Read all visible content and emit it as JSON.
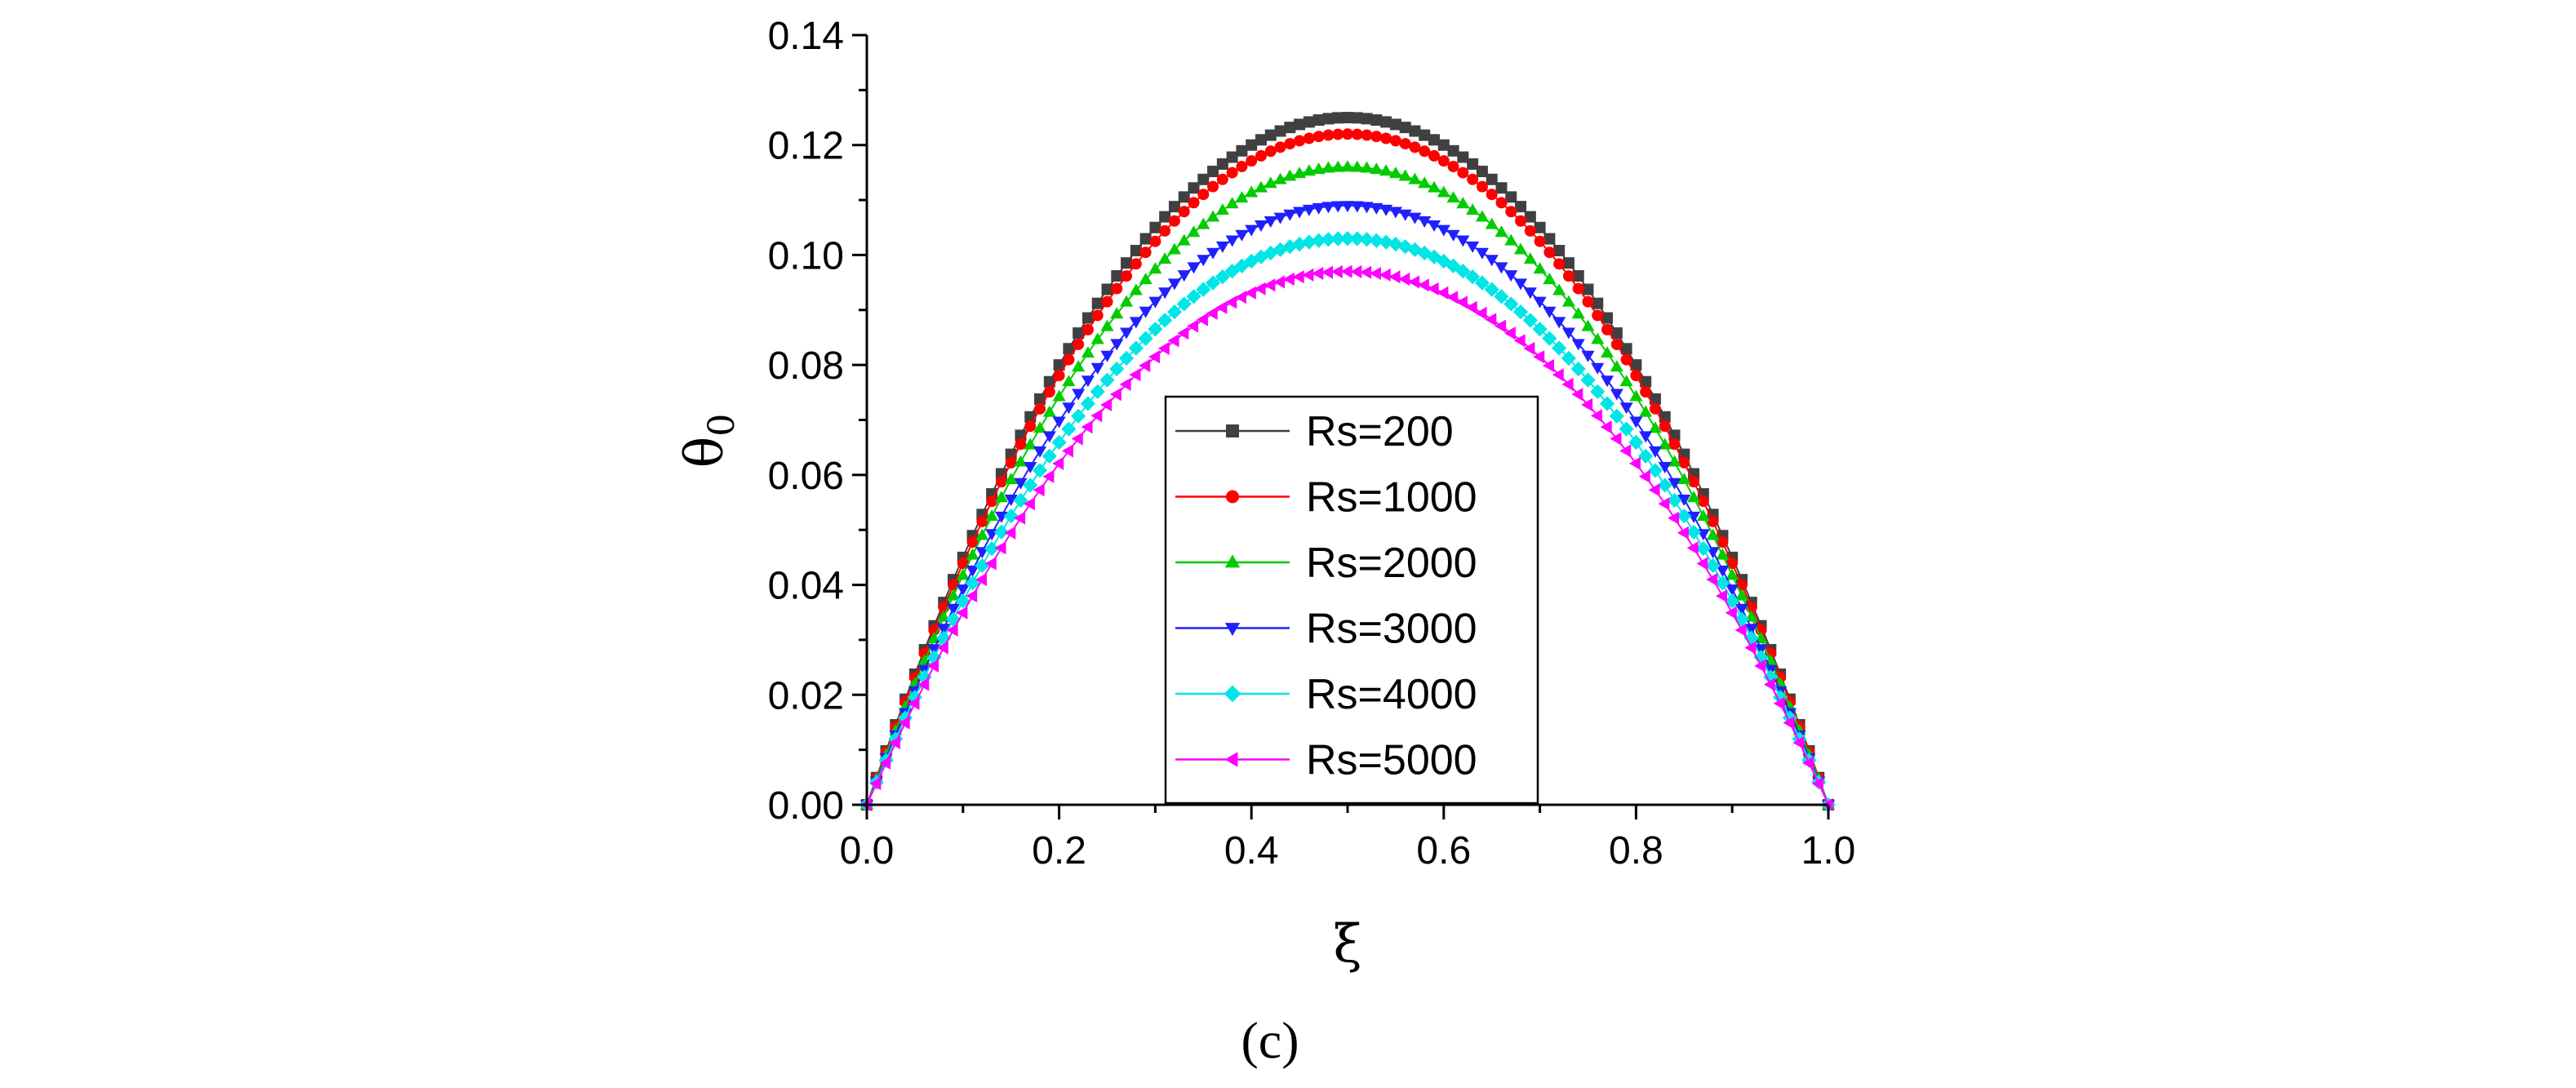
{
  "chart_data": {
    "type": "scatter",
    "title": "",
    "xlabel": "ξ",
    "ylabel": "θ",
    "ylabel_subscript": "0",
    "xlim": [
      0.0,
      1.0
    ],
    "ylim": [
      0.0,
      0.14
    ],
    "xticks": [
      "0.0",
      "0.2",
      "0.4",
      "0.6",
      "0.8",
      "1.0"
    ],
    "yticks": [
      "0.00",
      "0.02",
      "0.04",
      "0.06",
      "0.08",
      "0.10",
      "0.12",
      "0.14"
    ],
    "grid": false,
    "legend_position": "center",
    "caption": "(c)",
    "x_samples": 101,
    "series": [
      {
        "name": "Rs=200",
        "peak": 0.125,
        "color": "#404040",
        "marker": "square"
      },
      {
        "name": "Rs=1000",
        "peak": 0.122,
        "color": "#ff0000",
        "marker": "circle"
      },
      {
        "name": "Rs=2000",
        "peak": 0.116,
        "color": "#00cc00",
        "marker": "triangle-up"
      },
      {
        "name": "Rs=3000",
        "peak": 0.109,
        "color": "#2020ff",
        "marker": "triangle-down"
      },
      {
        "name": "Rs=4000",
        "peak": 0.103,
        "color": "#00e5e5",
        "marker": "diamond"
      },
      {
        "name": "Rs=5000",
        "peak": 0.097,
        "color": "#ff00ff",
        "marker": "triangle-left"
      }
    ]
  }
}
